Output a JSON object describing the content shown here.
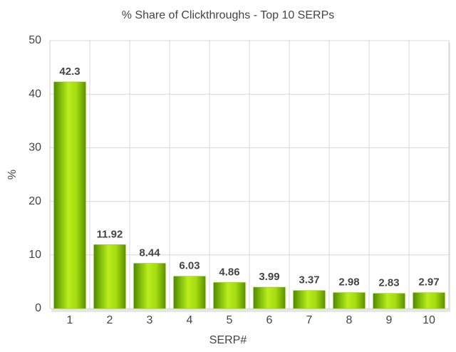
{
  "chart_data": {
    "type": "bar",
    "title": "% Share of Clickthroughs - Top 10 SERPs",
    "x_label": "SERP#",
    "y_label": "%",
    "categories": [
      "1",
      "2",
      "3",
      "4",
      "5",
      "6",
      "7",
      "8",
      "9",
      "10"
    ],
    "values": [
      42.3,
      11.92,
      8.44,
      6.03,
      4.86,
      3.99,
      3.37,
      2.98,
      2.83,
      2.97
    ],
    "color": "#8fc400",
    "ylim": [
      0,
      50
    ],
    "yticks": [
      0,
      10,
      20,
      30,
      40,
      50
    ],
    "grid": true
  }
}
